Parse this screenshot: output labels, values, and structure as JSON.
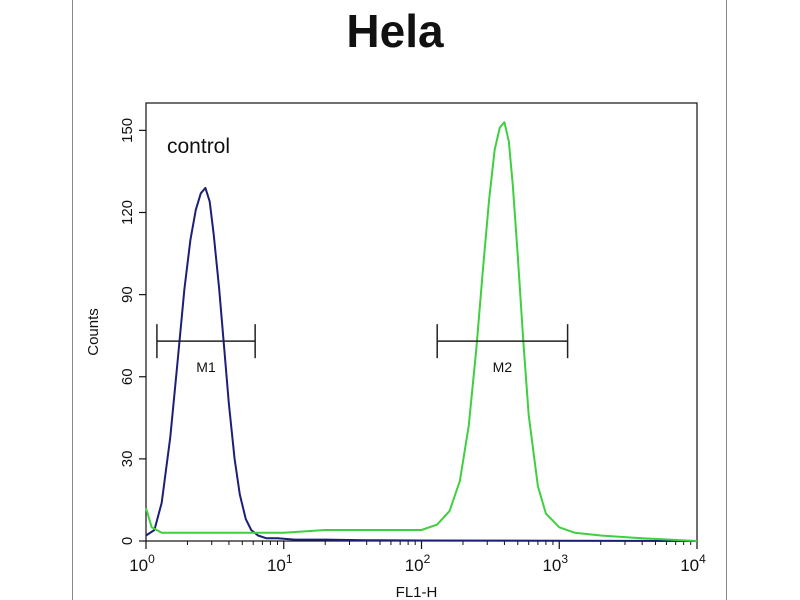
{
  "chart_data": {
    "type": "line",
    "title": "Hela",
    "xlabel": "FL1-H",
    "ylabel": "Counts",
    "x_scale": "log",
    "xlim": [
      1,
      10000
    ],
    "ylim": [
      0,
      160
    ],
    "x_ticks": [
      {
        "value": 1,
        "base": "10",
        "exp": "0"
      },
      {
        "value": 10,
        "base": "10",
        "exp": "1"
      },
      {
        "value": 100,
        "base": "10",
        "exp": "2"
      },
      {
        "value": 1000,
        "base": "10",
        "exp": "3"
      },
      {
        "value": 10000,
        "base": "10",
        "exp": "4"
      }
    ],
    "y_ticks": [
      0,
      30,
      60,
      90,
      120,
      150
    ],
    "annotation": "control",
    "legend": "none",
    "grid": false,
    "series": [
      {
        "color": "#1c1f78",
        "x": [
          1.0,
          1.15,
          1.3,
          1.5,
          1.7,
          1.9,
          2.1,
          2.3,
          2.5,
          2.7,
          2.9,
          3.1,
          3.4,
          3.7,
          4.0,
          4.4,
          4.8,
          5.3,
          5.8,
          6.5,
          7.5,
          9,
          12,
          20,
          40,
          100,
          1000,
          10000
        ],
        "y": [
          2,
          4,
          14,
          38,
          66,
          92,
          110,
          121,
          127,
          129,
          124,
          112,
          92,
          70,
          50,
          30,
          17,
          8,
          4,
          2,
          1,
          1,
          0.5,
          0.5,
          0.3,
          0.2,
          0.1,
          0
        ]
      },
      {
        "color": "#3fcf3f",
        "x": [
          1.0,
          1.1,
          1.3,
          2,
          4,
          10,
          20,
          40,
          70,
          100,
          130,
          160,
          190,
          220,
          250,
          280,
          310,
          340,
          370,
          400,
          430,
          460,
          500,
          550,
          600,
          700,
          800,
          1000,
          1300,
          2000,
          4000,
          10000
        ],
        "y": [
          12,
          5,
          3,
          3,
          3,
          3,
          4,
          4,
          4,
          4,
          6,
          11,
          22,
          42,
          70,
          100,
          125,
          143,
          151,
          153,
          146,
          130,
          104,
          72,
          46,
          20,
          10,
          5,
          3,
          2,
          1,
          0
        ]
      }
    ],
    "markers": [
      {
        "label": "M1",
        "x_start": 1.2,
        "x_end": 6.2,
        "y": 73
      },
      {
        "label": "M2",
        "x_start": 130,
        "x_end": 1150,
        "y": 73
      }
    ]
  }
}
